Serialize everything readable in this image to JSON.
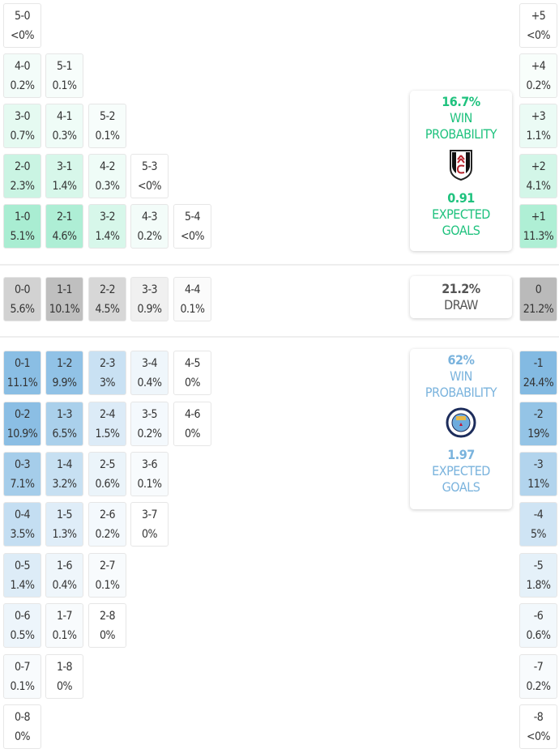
{
  "colors": {
    "home": "#1fc27e",
    "away": "#7ab3dd",
    "draw": "#555555"
  },
  "home": {
    "rows": [
      [
        [
          "5-0",
          "<0%"
        ]
      ],
      [
        [
          "4-0",
          "0.2%"
        ],
        [
          "5-1",
          "0.1%"
        ]
      ],
      [
        [
          "3-0",
          "0.7%"
        ],
        [
          "4-1",
          "0.3%"
        ],
        [
          "5-2",
          "0.1%"
        ]
      ],
      [
        [
          "2-0",
          "2.3%"
        ],
        [
          "3-1",
          "1.4%"
        ],
        [
          "4-2",
          "0.3%"
        ],
        [
          "5-3",
          "<0%"
        ]
      ],
      [
        [
          "1-0",
          "5.1%"
        ],
        [
          "2-1",
          "4.6%"
        ],
        [
          "3-2",
          "1.4%"
        ],
        [
          "4-3",
          "0.2%"
        ],
        [
          "5-4",
          "<0%"
        ]
      ]
    ],
    "margins": [
      [
        "+5",
        "<0%"
      ],
      [
        "+4",
        "0.2%"
      ],
      [
        "+3",
        "1.1%"
      ],
      [
        "+2",
        "4.1%"
      ],
      [
        "+1",
        "11.3%"
      ]
    ],
    "card": {
      "win_pct": "16.7%",
      "win_label_1": "WIN",
      "win_label_2": "PROBABILITY",
      "xg": "0.91",
      "xg_label_1": "EXPECTED",
      "xg_label_2": "GOALS",
      "crest_icon": "fulham-crest-icon"
    }
  },
  "draw": {
    "rows": [
      [
        [
          "0-0",
          "5.6%"
        ],
        [
          "1-1",
          "10.1%"
        ],
        [
          "2-2",
          "4.5%"
        ],
        [
          "3-3",
          "0.9%"
        ],
        [
          "4-4",
          "0.1%"
        ]
      ]
    ],
    "margins": [
      [
        "0",
        "21.2%"
      ]
    ],
    "card": {
      "pct": "21.2%",
      "label": "DRAW"
    }
  },
  "away": {
    "rows": [
      [
        [
          "0-1",
          "11.1%"
        ],
        [
          "1-2",
          "9.9%"
        ],
        [
          "2-3",
          "3%"
        ],
        [
          "3-4",
          "0.4%"
        ],
        [
          "4-5",
          "0%"
        ]
      ],
      [
        [
          "0-2",
          "10.9%"
        ],
        [
          "1-3",
          "6.5%"
        ],
        [
          "2-4",
          "1.5%"
        ],
        [
          "3-5",
          "0.2%"
        ],
        [
          "4-6",
          "0%"
        ]
      ],
      [
        [
          "0-3",
          "7.1%"
        ],
        [
          "1-4",
          "3.2%"
        ],
        [
          "2-5",
          "0.6%"
        ],
        [
          "3-6",
          "0.1%"
        ]
      ],
      [
        [
          "0-4",
          "3.5%"
        ],
        [
          "1-5",
          "1.3%"
        ],
        [
          "2-6",
          "0.2%"
        ],
        [
          "3-7",
          "0%"
        ]
      ],
      [
        [
          "0-5",
          "1.4%"
        ],
        [
          "1-6",
          "0.4%"
        ],
        [
          "2-7",
          "0.1%"
        ]
      ],
      [
        [
          "0-6",
          "0.5%"
        ],
        [
          "1-7",
          "0.1%"
        ],
        [
          "2-8",
          "0%"
        ]
      ],
      [
        [
          "0-7",
          "0.1%"
        ],
        [
          "1-8",
          "0%"
        ]
      ],
      [
        [
          "0-8",
          "0%"
        ]
      ]
    ],
    "margins": [
      [
        "-1",
        "24.4%"
      ],
      [
        "-2",
        "19%"
      ],
      [
        "-3",
        "11%"
      ],
      [
        "-4",
        "5%"
      ],
      [
        "-5",
        "1.8%"
      ],
      [
        "-6",
        "0.6%"
      ],
      [
        "-7",
        "0.2%"
      ],
      [
        "-8",
        "<0%"
      ]
    ],
    "card": {
      "win_pct": "62%",
      "win_label_1": "WIN",
      "win_label_2": "PROBABILITY",
      "xg": "1.97",
      "xg_label_1": "EXPECTED",
      "xg_label_2": "GOALS",
      "crest_icon": "manchester-city-crest-icon"
    }
  }
}
